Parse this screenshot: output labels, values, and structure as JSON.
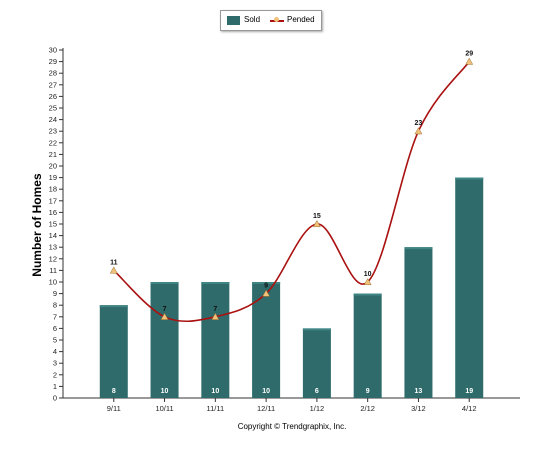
{
  "legend": {
    "sold_label": "Sold",
    "pended_label": "Pended"
  },
  "colors": {
    "bar": "#2e6b6a",
    "bar_top": "#3f8584",
    "line": "#aa1111",
    "marker": "#f0c27b"
  },
  "footer": {
    "text": "Copyright © Trendgraphix, Inc."
  },
  "chart_data": {
    "type": "bar",
    "categories": [
      "9/11",
      "10/11",
      "11/11",
      "12/11",
      "1/12",
      "2/12",
      "3/12",
      "4/12"
    ],
    "series": [
      {
        "name": "Sold",
        "type": "bar",
        "values": [
          8,
          10,
          10,
          10,
          6,
          9,
          13,
          19
        ]
      },
      {
        "name": "Pended",
        "type": "line",
        "values": [
          11,
          7,
          7,
          9,
          15,
          10,
          23,
          29
        ]
      }
    ],
    "ylabel": "Number of Homes",
    "xlabel": "",
    "ylim": [
      0,
      30
    ],
    "yticks": [
      0,
      1,
      2,
      3,
      4,
      5,
      6,
      7,
      8,
      9,
      10,
      11,
      12,
      13,
      14,
      15,
      16,
      17,
      18,
      19,
      20,
      21,
      22,
      23,
      24,
      25,
      26,
      27,
      28,
      29,
      30
    ],
    "grid": false,
    "legend_position": "top-center"
  }
}
